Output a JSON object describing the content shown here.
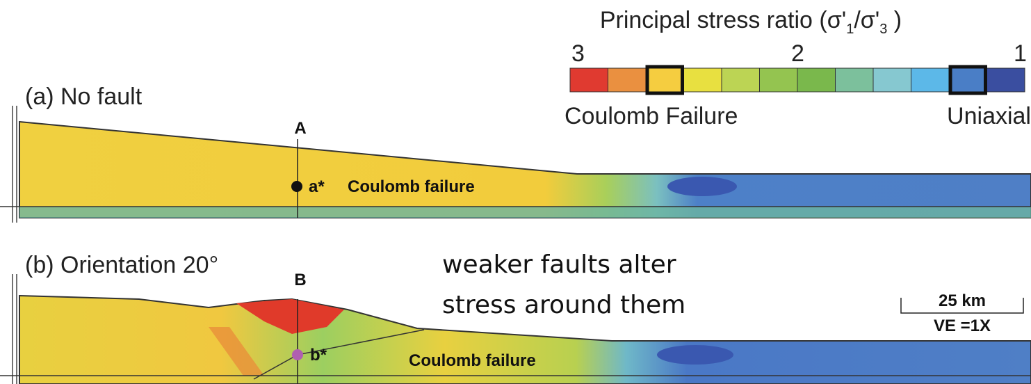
{
  "legend": {
    "title": [
      "Principal stress ratio (σ'",
      "1",
      "/σ'",
      "3",
      " )"
    ],
    "ticks": [
      "3",
      "2",
      "1"
    ],
    "left_label": "Coulomb Failure",
    "right_label": "Uniaxial"
  },
  "panels": [
    {
      "label": "(a) No fault",
      "point_label": "A",
      "marker_label": "a*",
      "zone_label": "Coulomb failure"
    },
    {
      "label": "(b) Orientation 20°",
      "point_label": "B",
      "marker_label": "b*",
      "zone_label": "Coulomb failure"
    }
  ],
  "annotation": [
    "weaker faults alter",
    "stress around them"
  ],
  "scale_bar": {
    "distance": "25 km",
    "exaggeration": "VE =1X"
  }
}
